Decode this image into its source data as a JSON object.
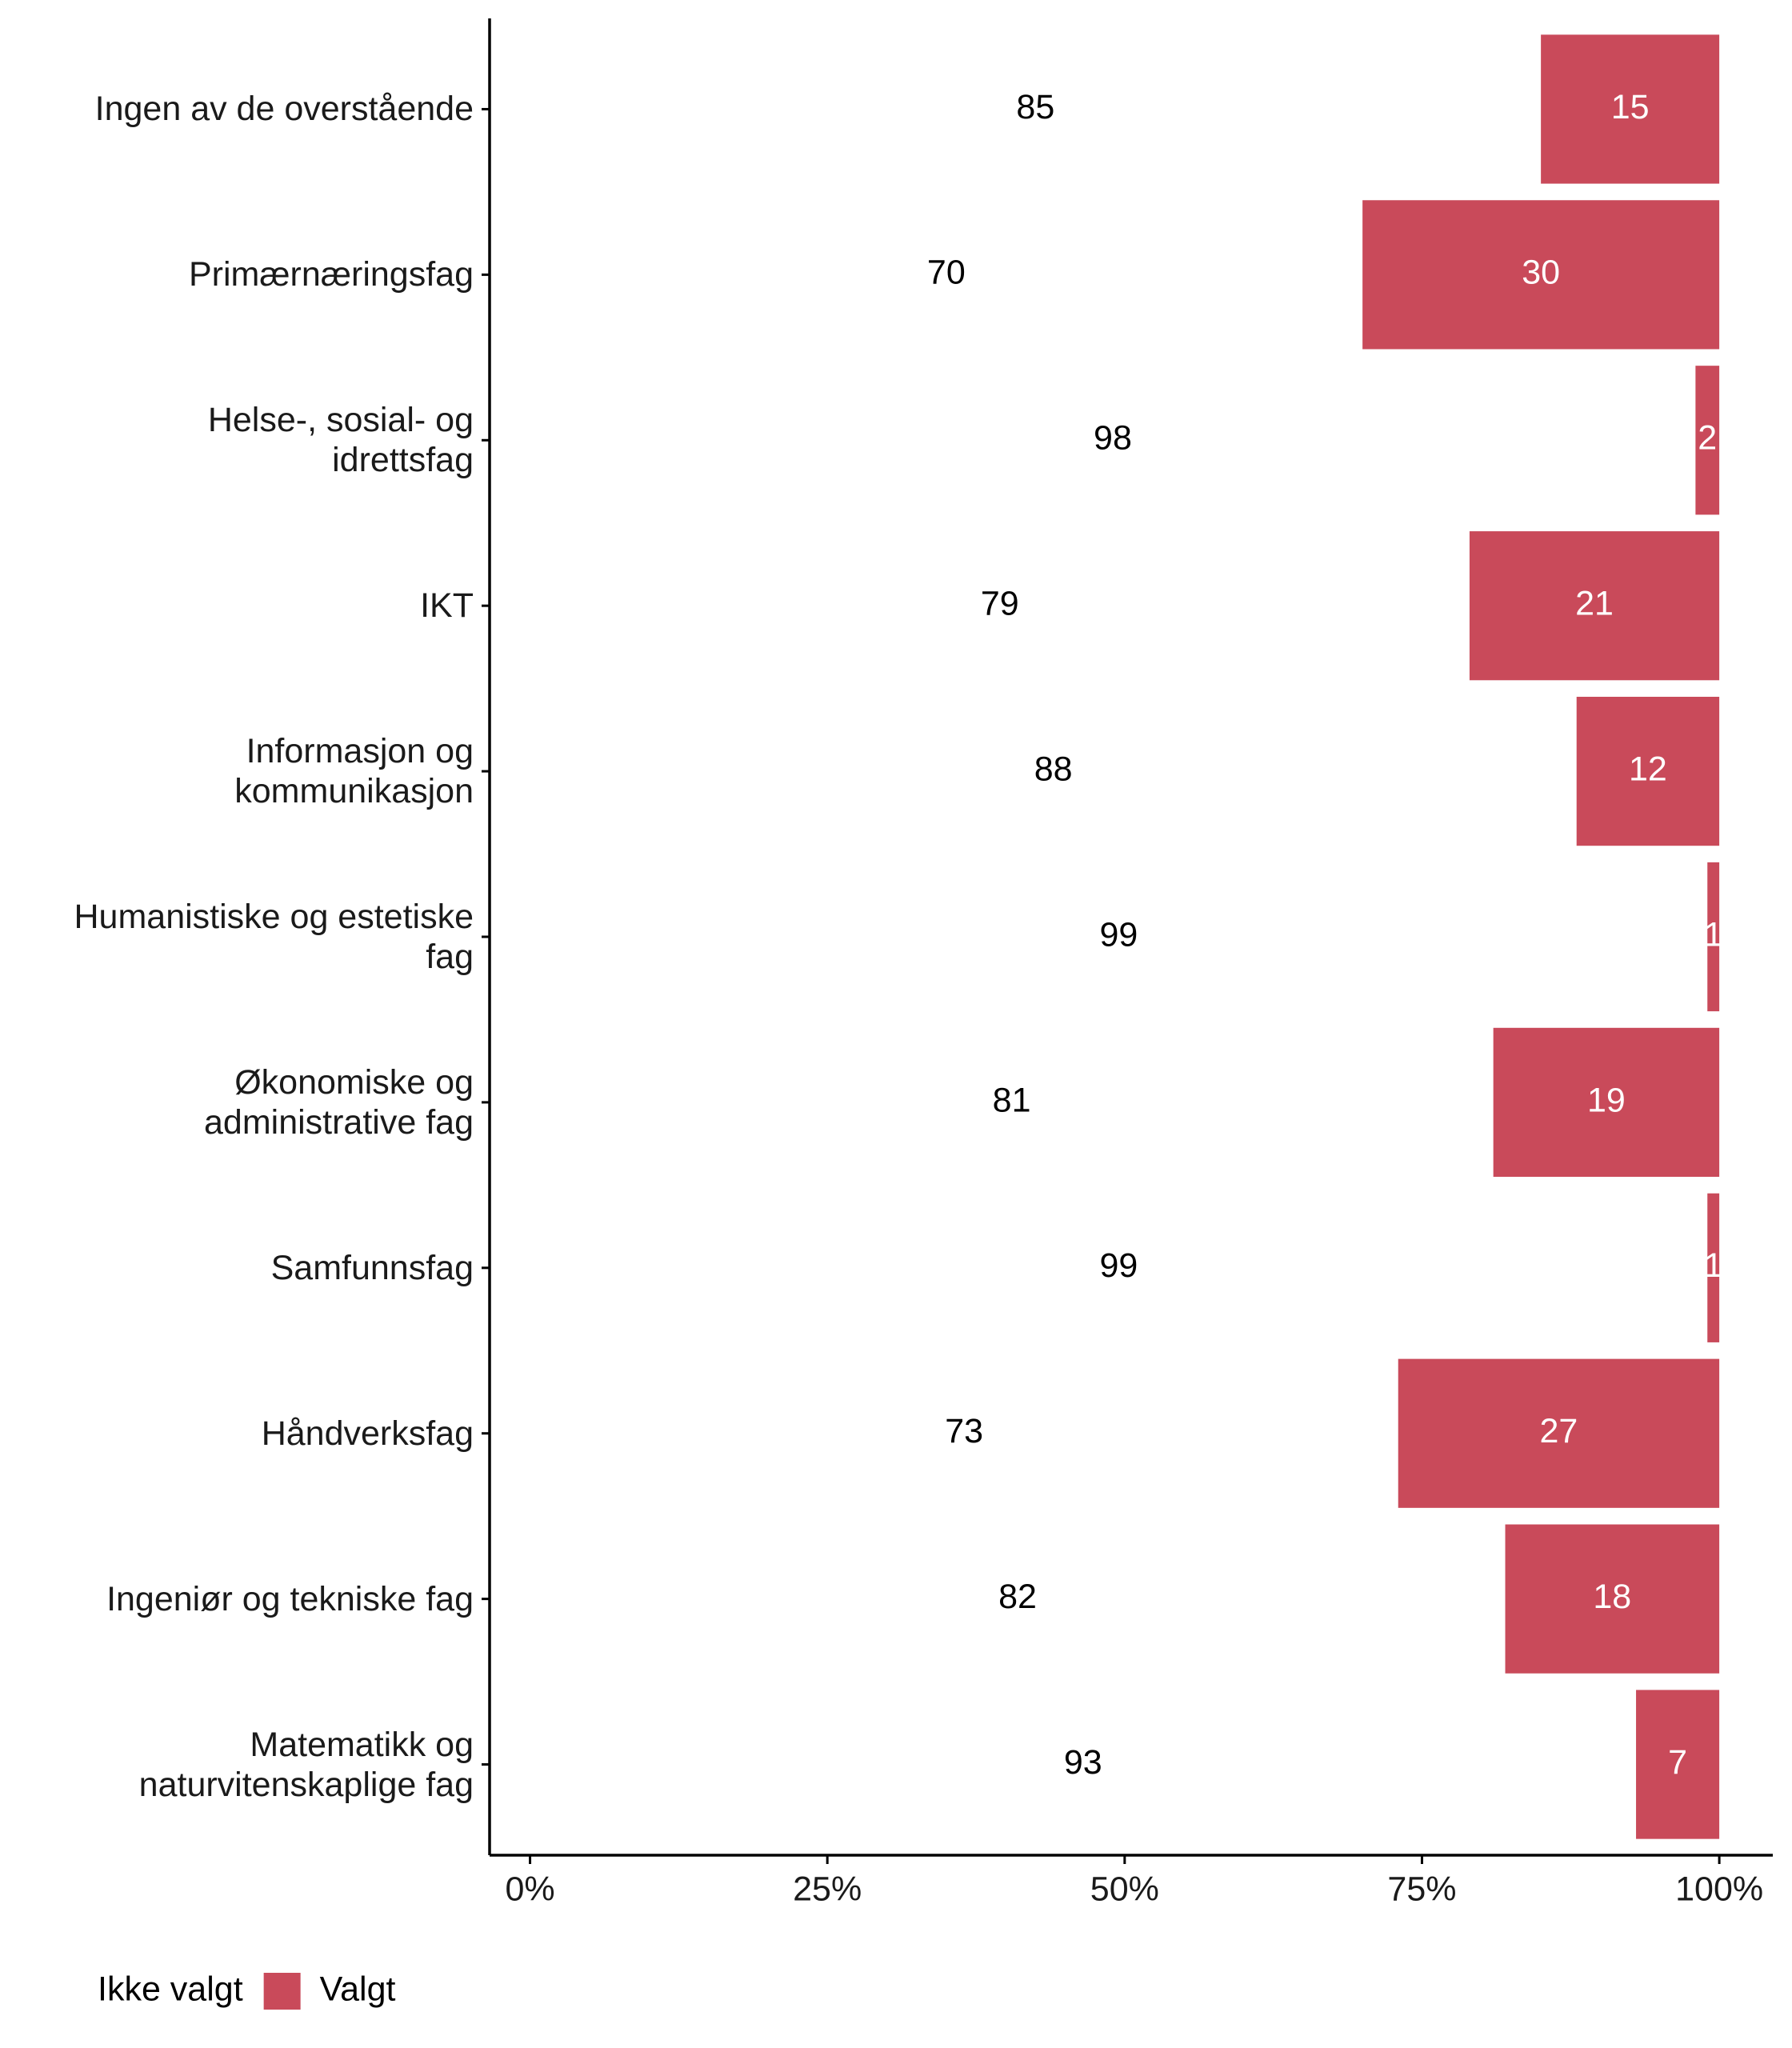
{
  "chart_data": {
    "type": "stacked-barh",
    "categories": [
      "Ingen av de overstående",
      "Primærnæringsfag",
      "Helse-, sosial- og\nidrettsfag",
      "IKT",
      "Informasjon og\nkommunikasjon",
      "Humanistiske og estetiske\nfag",
      "Økonomiske og\nadministrative fag",
      "Samfunnsfag",
      "Håndverksfag",
      "Ingeniør og tekniske fag",
      "Matematikk og\nnaturvitenskaplige fag"
    ],
    "series": [
      {
        "name": "Ikke valgt",
        "color": "#ffffff",
        "label_color": "#000000",
        "values": [
          85,
          70,
          98,
          79,
          88,
          99,
          81,
          99,
          73,
          82,
          93
        ]
      },
      {
        "name": "Valgt",
        "color": "#c94a5a",
        "label_color": "#ffffff",
        "values": [
          15,
          30,
          2,
          21,
          12,
          1,
          19,
          1,
          27,
          18,
          7
        ]
      }
    ],
    "xlim": [
      -3.4,
      104.5
    ],
    "xticks": [
      {
        "value": 0,
        "label": "0%"
      },
      {
        "value": 25,
        "label": "25%"
      },
      {
        "value": 50,
        "label": "50%"
      },
      {
        "value": 75,
        "label": "75%"
      },
      {
        "value": 100,
        "label": "100%"
      }
    ],
    "legend": "bottom-left"
  }
}
